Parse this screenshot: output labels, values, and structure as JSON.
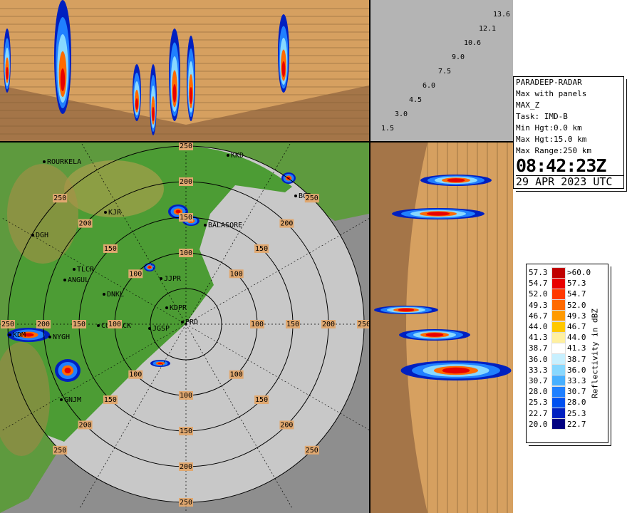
{
  "info": {
    "lines": [
      "PARADEEP-RADAR",
      "Max with panels",
      "MAX_Z",
      "Task: IMD-B",
      "Min Hgt:0.0 km",
      "Max Hgt:15.0 km",
      "Max Range:250 km"
    ],
    "time": "08:42:23Z",
    "date": "29 APR 2023 UTC"
  },
  "legend": {
    "title": "Reflectivity in dBZ",
    "rows": [
      [
        "57.3",
        ">60.0"
      ],
      [
        "54.7",
        "57.3"
      ],
      [
        "52.0",
        "54.7"
      ],
      [
        "49.3",
        "52.0"
      ],
      [
        "46.7",
        "49.3"
      ],
      [
        "44.0",
        "46.7"
      ],
      [
        "41.3",
        "44.0"
      ],
      [
        "38.7",
        "41.3"
      ],
      [
        "36.0",
        "38.7"
      ],
      [
        "33.3",
        "36.0"
      ],
      [
        "30.7",
        "33.3"
      ],
      [
        "28.0",
        "30.7"
      ],
      [
        "25.3",
        "28.0"
      ],
      [
        "22.7",
        "25.3"
      ],
      [
        "20.0",
        "22.7"
      ]
    ],
    "colors": [
      "#c00000",
      "#e80000",
      "#ff3800",
      "#ff6a00",
      "#ff9a00",
      "#ffc800",
      "#fff0a0",
      "#ffffff",
      "#c8f0ff",
      "#88d8ff",
      "#48b0ff",
      "#2080ff",
      "#0050f0",
      "#0020c0",
      "#000080"
    ]
  },
  "elevation_angles": [
    "1.5",
    "3.0",
    "4.5",
    "6.0",
    "7.5",
    "9.0",
    "10.6",
    "12.1",
    "13.6"
  ],
  "range_labels": [
    "100",
    "150",
    "200",
    "250"
  ],
  "stations": [
    "ROURKELA",
    "KKD",
    "BGR",
    "KJR",
    "BALASORE",
    "DGH",
    "TLCR",
    "ANGUL",
    "DNKL",
    "JJPR",
    "KDPR",
    "CUTTACK",
    "JGSP",
    "PRD",
    "NYGH",
    "KDM",
    "GNJM"
  ]
}
